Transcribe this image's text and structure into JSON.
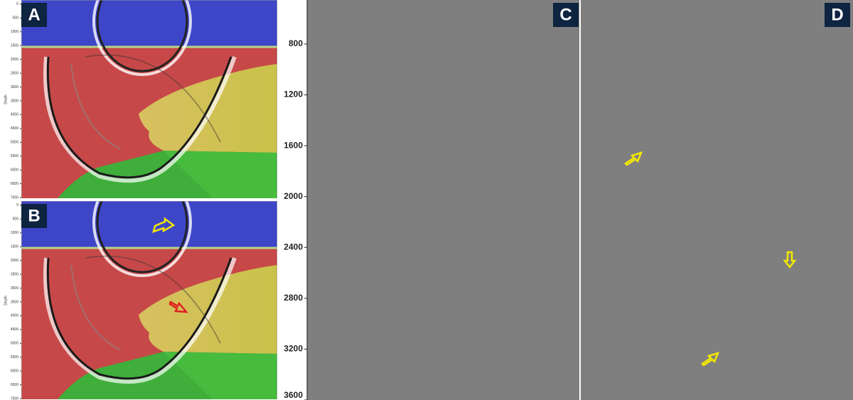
{
  "panels": {
    "a": {
      "label": "A"
    },
    "b": {
      "label": "B"
    },
    "c": {
      "label": "C"
    },
    "d": {
      "label": "D"
    }
  },
  "model_axis": {
    "label": "Depth",
    "ylim": [
      -150,
      7050
    ],
    "yticks": [
      0,
      500,
      1000,
      1500,
      2000,
      2500,
      3000,
      3500,
      4000,
      4500,
      5000,
      5500,
      6000,
      6500,
      7000
    ]
  },
  "gather_axis": {
    "ylim": [
      454,
      3600
    ],
    "yticks": [
      800,
      1200,
      1600,
      2000,
      2400,
      2800,
      3200,
      3600
    ]
  }
}
